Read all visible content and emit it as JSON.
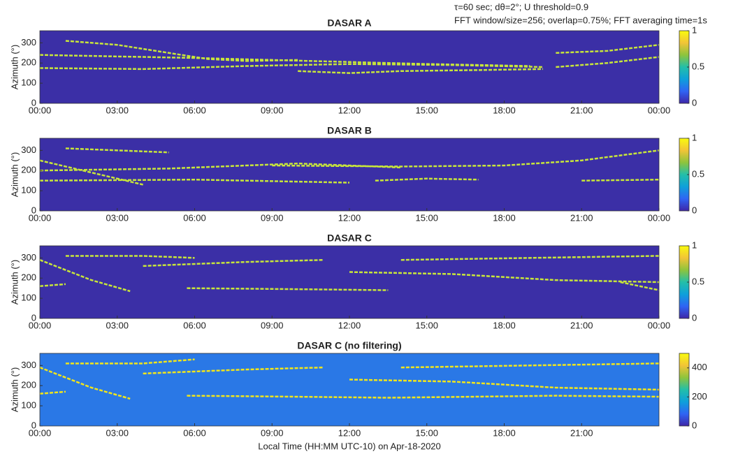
{
  "annotations": [
    "τ=60 sec; dθ=2°; U threshold=0.9",
    "FFT window/size=256; overlap=0.75%; FFT averaging time=1s"
  ],
  "chart_data": [
    {
      "type": "heatmap",
      "title": "DASAR A",
      "ylabel": "Azimuth (°)",
      "background": "#3b2fa6",
      "track_color": "#c8e63a",
      "colormap": [
        "#3e26a8",
        "#2f64f4",
        "#0ea0da",
        "#23bfa9",
        "#8ec43c",
        "#f2c437",
        "#f9fb0e"
      ],
      "xlim": [
        0,
        24
      ],
      "xticks": [
        {
          "value": 0,
          "label": "00:00"
        },
        {
          "value": 3,
          "label": "03:00"
        },
        {
          "value": 6,
          "label": "06:00"
        },
        {
          "value": 9,
          "label": "09:00"
        },
        {
          "value": 12,
          "label": "12:00"
        },
        {
          "value": 15,
          "label": "15:00"
        },
        {
          "value": 18,
          "label": "18:00"
        },
        {
          "value": 21,
          "label": "21:00"
        },
        {
          "value": 24,
          "label": "00:00"
        }
      ],
      "ylim": [
        0,
        360
      ],
      "yticks": [
        0,
        100,
        200,
        300
      ],
      "clim": [
        0,
        1
      ],
      "cticks": [
        0,
        0.5,
        1
      ],
      "tracks": [
        {
          "x": [
            1,
            3,
            5,
            6.5,
            8,
            10
          ],
          "y": [
            310,
            290,
            250,
            220,
            210,
            215
          ]
        },
        {
          "x": [
            0,
            4,
            8,
            12,
            16,
            19.5
          ],
          "y": [
            175,
            170,
            185,
            195,
            190,
            180
          ]
        },
        {
          "x": [
            0,
            6,
            12,
            15,
            19
          ],
          "y": [
            240,
            225,
            205,
            195,
            185
          ]
        },
        {
          "x": [
            10,
            12,
            14,
            17,
            19.5
          ],
          "y": [
            160,
            150,
            160,
            165,
            170
          ]
        },
        {
          "x": [
            20,
            22,
            24
          ],
          "y": [
            180,
            200,
            230
          ]
        },
        {
          "x": [
            20,
            22,
            24
          ],
          "y": [
            250,
            260,
            290
          ]
        }
      ]
    },
    {
      "type": "heatmap",
      "title": "DASAR B",
      "ylabel": "Azimuth (°)",
      "background": "#3b2fa6",
      "track_color": "#c8e63a",
      "colormap": [
        "#3e26a8",
        "#2f64f4",
        "#0ea0da",
        "#23bfa9",
        "#8ec43c",
        "#f2c437",
        "#f9fb0e"
      ],
      "xlim": [
        0,
        24
      ],
      "xticks": [
        {
          "value": 0,
          "label": "00:00"
        },
        {
          "value": 3,
          "label": "03:00"
        },
        {
          "value": 6,
          "label": "06:00"
        },
        {
          "value": 9,
          "label": "09:00"
        },
        {
          "value": 12,
          "label": "12:00"
        },
        {
          "value": 15,
          "label": "15:00"
        },
        {
          "value": 18,
          "label": "18:00"
        },
        {
          "value": 21,
          "label": "21:00"
        },
        {
          "value": 24,
          "label": "00:00"
        }
      ],
      "ylim": [
        0,
        360
      ],
      "yticks": [
        0,
        100,
        200,
        300
      ],
      "clim": [
        0,
        1
      ],
      "cticks": [
        0,
        0.5,
        1
      ],
      "tracks": [
        {
          "x": [
            0,
            2,
            4
          ],
          "y": [
            250,
            190,
            130
          ]
        },
        {
          "x": [
            1,
            3,
            5
          ],
          "y": [
            310,
            300,
            290
          ]
        },
        {
          "x": [
            0,
            5,
            10,
            14
          ],
          "y": [
            200,
            210,
            235,
            215
          ]
        },
        {
          "x": [
            9,
            14,
            18,
            21,
            24
          ],
          "y": [
            225,
            220,
            225,
            250,
            300
          ]
        },
        {
          "x": [
            0,
            6,
            12
          ],
          "y": [
            150,
            155,
            140
          ]
        },
        {
          "x": [
            13,
            15,
            17
          ],
          "y": [
            150,
            160,
            155
          ]
        },
        {
          "x": [
            21,
            24
          ],
          "y": [
            150,
            155
          ]
        }
      ]
    },
    {
      "type": "heatmap",
      "title": "DASAR C",
      "ylabel": "Azimuth (°)",
      "background": "#3b2fa6",
      "track_color": "#c8e63a",
      "colormap": [
        "#3e26a8",
        "#2f64f4",
        "#0ea0da",
        "#23bfa9",
        "#8ec43c",
        "#f2c437",
        "#f9fb0e"
      ],
      "xlim": [
        0,
        24
      ],
      "xticks": [
        {
          "value": 0,
          "label": "00:00"
        },
        {
          "value": 3,
          "label": "03:00"
        },
        {
          "value": 6,
          "label": "06:00"
        },
        {
          "value": 9,
          "label": "09:00"
        },
        {
          "value": 12,
          "label": "12:00"
        },
        {
          "value": 15,
          "label": "15:00"
        },
        {
          "value": 18,
          "label": "18:00"
        },
        {
          "value": 21,
          "label": "21:00"
        },
        {
          "value": 24,
          "label": "00:00"
        }
      ],
      "ylim": [
        0,
        360
      ],
      "yticks": [
        0,
        100,
        200,
        300
      ],
      "clim": [
        0,
        1
      ],
      "cticks": [
        0,
        0.5,
        1
      ],
      "tracks": [
        {
          "x": [
            0,
            2,
            3.5
          ],
          "y": [
            290,
            190,
            135
          ]
        },
        {
          "x": [
            1,
            4,
            6
          ],
          "y": [
            310,
            310,
            300
          ]
        },
        {
          "x": [
            5.7,
            10,
            13.5
          ],
          "y": [
            150,
            145,
            140
          ]
        },
        {
          "x": [
            4,
            8,
            11
          ],
          "y": [
            260,
            280,
            290
          ]
        },
        {
          "x": [
            12,
            16,
            20,
            24
          ],
          "y": [
            230,
            220,
            190,
            180
          ]
        },
        {
          "x": [
            14,
            19,
            24
          ],
          "y": [
            290,
            300,
            310
          ]
        },
        {
          "x": [
            22.5,
            24
          ],
          "y": [
            180,
            140
          ]
        },
        {
          "x": [
            0,
            1
          ],
          "y": [
            160,
            170
          ]
        }
      ]
    },
    {
      "type": "heatmap",
      "title": "DASAR C (no filtering)",
      "ylabel": "Azimuth (°)",
      "xlabel": "Local Time (HH:MM UTC-10) on Apr-18-2020",
      "background": "#2a78e6",
      "track_color": "#f2e61a",
      "colormap": [
        "#3e26a8",
        "#2f64f4",
        "#0ea0da",
        "#23bfa9",
        "#8ec43c",
        "#f2c437",
        "#f9fb0e"
      ],
      "xlim": [
        0,
        24
      ],
      "xticks": [
        {
          "value": 0,
          "label": "00:00"
        },
        {
          "value": 3,
          "label": "03:00"
        },
        {
          "value": 6,
          "label": "06:00"
        },
        {
          "value": 9,
          "label": "09:00"
        },
        {
          "value": 12,
          "label": "12:00"
        },
        {
          "value": 15,
          "label": "15:00"
        },
        {
          "value": 18,
          "label": "18:00"
        },
        {
          "value": 21,
          "label": "21:00"
        }
      ],
      "ylim": [
        0,
        360
      ],
      "yticks": [
        0,
        100,
        200,
        300
      ],
      "clim": [
        0,
        500
      ],
      "cticks": [
        0,
        200,
        400
      ],
      "tracks": [
        {
          "x": [
            0,
            2,
            3.5
          ],
          "y": [
            290,
            190,
            135
          ]
        },
        {
          "x": [
            1,
            4,
            6
          ],
          "y": [
            310,
            310,
            330
          ]
        },
        {
          "x": [
            5.7,
            10,
            13.5,
            20,
            24
          ],
          "y": [
            150,
            145,
            140,
            150,
            145
          ]
        },
        {
          "x": [
            4,
            8,
            11
          ],
          "y": [
            260,
            280,
            290
          ]
        },
        {
          "x": [
            12,
            16,
            20,
            24
          ],
          "y": [
            230,
            220,
            190,
            180
          ]
        },
        {
          "x": [
            14,
            19,
            24
          ],
          "y": [
            290,
            300,
            310
          ]
        },
        {
          "x": [
            0,
            1
          ],
          "y": [
            160,
            170
          ]
        }
      ]
    }
  ]
}
